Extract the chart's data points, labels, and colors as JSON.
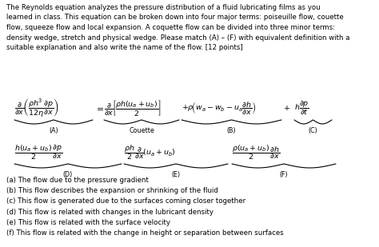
{
  "bg_color": "#ffffff",
  "text_color": "#000000",
  "figsize": [
    4.74,
    3.09
  ],
  "dpi": 100,
  "para_lines": [
    "The Reynolds equation analyzes the pressure distribution of a fluid lubricating films as you",
    "learned in class. This equation can be broken down into four major terms: poiseuille flow, couette",
    "flow, squeeze flow and local expansion. A coquette flow can be divided into three minor terms:",
    "density wedge, stretch and physical wedge. Please match (A) – (F) with equivalent definition with a",
    "suitable explanation and also write the name of the flow. [12 points]"
  ],
  "list_items": [
    "(a) The flow due to the pressure gradient",
    "(b) This flow describes the expansion or shrinking of the fluid",
    "(c) This flow is generated due to the surfaces coming closer together",
    "(d) This flow is related with changes in the lubricant density",
    "(e) This flow is related with the surface velocity",
    "(f) This flow is related with the change in height or separation between surfaces"
  ],
  "fs_para": 6.2,
  "fs_eq": 6.8,
  "fs_label": 5.8,
  "fs_list": 6.2
}
